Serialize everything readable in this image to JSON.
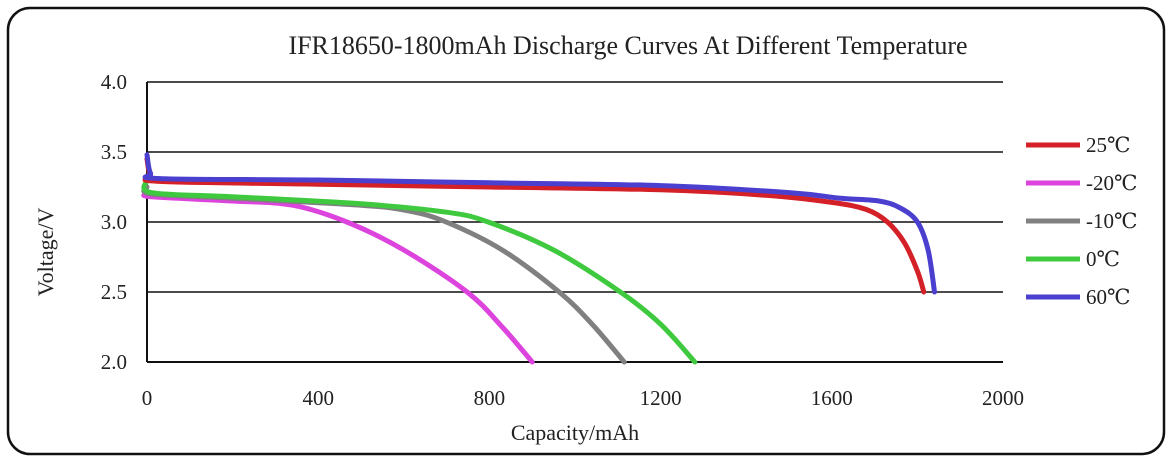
{
  "chart_data": {
    "type": "line",
    "title": "IFR18650-1800mAh  Discharge Curves At Different Temperature",
    "xlabel": "Capacity/mAh",
    "ylabel": "Voltage/V",
    "xlim": [
      0,
      2000
    ],
    "ylim": [
      2.0,
      4.0
    ],
    "xticks": [
      0,
      400,
      800,
      1200,
      1600,
      2000
    ],
    "yticks": [
      "2.0",
      "2.5",
      "3.0",
      "3.5",
      "4.0"
    ],
    "grid": "horizontal",
    "legend": "right",
    "series": [
      {
        "name": "25℃",
        "color": "#d42027",
        "points": [
          [
            0,
            3.45
          ],
          [
            8,
            3.33
          ],
          [
            30,
            3.29
          ],
          [
            400,
            3.27
          ],
          [
            800,
            3.25
          ],
          [
            1200,
            3.23
          ],
          [
            1450,
            3.19
          ],
          [
            1600,
            3.14
          ],
          [
            1680,
            3.09
          ],
          [
            1730,
            3.0
          ],
          [
            1770,
            2.85
          ],
          [
            1800,
            2.65
          ],
          [
            1815,
            2.5
          ]
        ]
      },
      {
        "name": "-20℃",
        "color": "#dd44dd",
        "points": [
          [
            0,
            3.2
          ],
          [
            10,
            3.18
          ],
          [
            200,
            3.15
          ],
          [
            340,
            3.12
          ],
          [
            467,
            3.0
          ],
          [
            600,
            2.8
          ],
          [
            748,
            2.5
          ],
          [
            830,
            2.25
          ],
          [
            900,
            2.0
          ]
        ]
      },
      {
        "name": "-10℃",
        "color": "#808080",
        "points": [
          [
            0,
            3.25
          ],
          [
            10,
            3.2
          ],
          [
            200,
            3.17
          ],
          [
            500,
            3.12
          ],
          [
            610,
            3.08
          ],
          [
            699,
            3.0
          ],
          [
            830,
            2.8
          ],
          [
            963,
            2.5
          ],
          [
            1040,
            2.27
          ],
          [
            1115,
            2.0
          ]
        ]
      },
      {
        "name": "0℃",
        "color": "#3ec93e",
        "points": [
          [
            0,
            3.3
          ],
          [
            10,
            3.21
          ],
          [
            200,
            3.18
          ],
          [
            500,
            3.13
          ],
          [
            700,
            3.07
          ],
          [
            797,
            3.0
          ],
          [
            950,
            2.8
          ],
          [
            1106,
            2.5
          ],
          [
            1200,
            2.27
          ],
          [
            1280,
            2.0
          ]
        ]
      },
      {
        "name": "60℃",
        "color": "#4a3fcf",
        "points": [
          [
            0,
            3.48
          ],
          [
            8,
            3.35
          ],
          [
            30,
            3.31
          ],
          [
            400,
            3.3
          ],
          [
            800,
            3.28
          ],
          [
            1200,
            3.26
          ],
          [
            1500,
            3.21
          ],
          [
            1620,
            3.17
          ],
          [
            1710,
            3.15
          ],
          [
            1760,
            3.1
          ],
          [
            1800,
            3.0
          ],
          [
            1825,
            2.8
          ],
          [
            1840,
            2.5
          ]
        ]
      }
    ]
  }
}
